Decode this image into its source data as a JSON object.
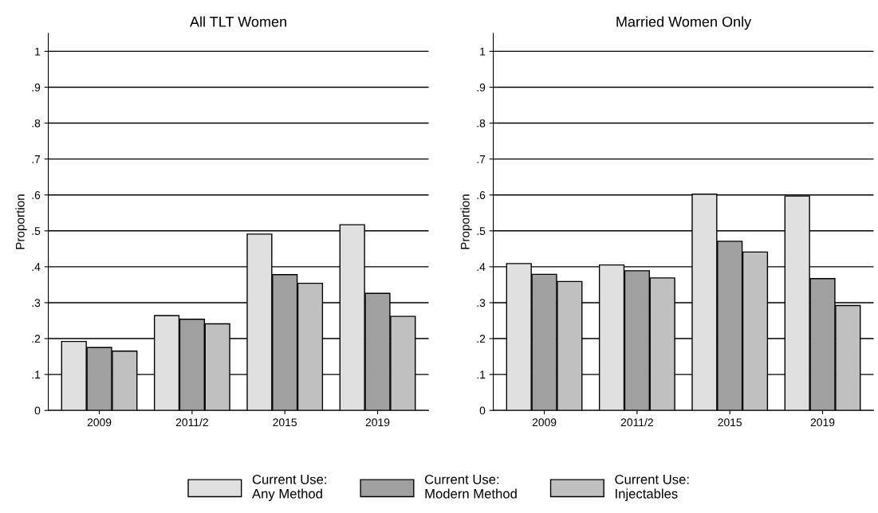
{
  "chart_data": [
    {
      "type": "bar",
      "title": "All TLT Women",
      "ylabel": "Proportion",
      "categories": [
        "2009",
        "2011/2",
        "2015",
        "2019"
      ],
      "series": [
        {
          "name": "Current Use:\nAny Method",
          "color": "#e0e0e0",
          "values": [
            0.192,
            0.264,
            0.491,
            0.517
          ]
        },
        {
          "name": "Current Use:\nModern Method",
          "color": "#a0a0a0",
          "values": [
            0.175,
            0.254,
            0.378,
            0.326
          ]
        },
        {
          "name": "Current Use:\nInjectables",
          "color": "#c0c0c0",
          "values": [
            0.165,
            0.241,
            0.354,
            0.262
          ]
        }
      ],
      "ylim": [
        0,
        1.05
      ],
      "yticks": [
        0,
        {
          "value": 0.1,
          "label": ".1"
        },
        {
          "value": 0.2,
          "label": ".2"
        },
        {
          "value": 0.3,
          "label": ".3"
        },
        {
          "value": 0.4,
          "label": ".4"
        },
        {
          "value": 0.5,
          "label": ".5"
        },
        {
          "value": 0.6,
          "label": ".6"
        },
        {
          "value": 0.7,
          "label": ".7"
        },
        {
          "value": 0.8,
          "label": ".8"
        },
        {
          "value": 0.9,
          "label": ".9"
        },
        1
      ],
      "grid": "y",
      "legend": "bottom"
    },
    {
      "type": "bar",
      "title": "Married Women Only",
      "ylabel": "Proportion",
      "categories": [
        "2009",
        "2011/2",
        "2015",
        "2019"
      ],
      "series": [
        {
          "color": "#e0e0e0",
          "values": [
            0.409,
            0.405,
            0.602,
            0.597
          ]
        },
        {
          "color": "#a0a0a0",
          "values": [
            0.379,
            0.389,
            0.471,
            0.367
          ]
        },
        {
          "color": "#c0c0c0",
          "values": [
            0.359,
            0.369,
            0.441,
            0.292
          ]
        }
      ],
      "ylim": [
        0,
        1.05
      ],
      "yticks": [
        0,
        {
          "value": 0.1,
          "label": ".1"
        },
        {
          "value": 0.2,
          "label": ".2"
        },
        {
          "value": 0.3,
          "label": ".3"
        },
        {
          "value": 0.4,
          "label": ".4"
        },
        {
          "value": 0.5,
          "label": ".5"
        },
        {
          "value": 0.6,
          "label": ".6"
        },
        {
          "value": 0.7,
          "label": ".7"
        },
        {
          "value": 0.8,
          "label": ".8"
        },
        {
          "value": 0.9,
          "label": ".9"
        },
        1
      ],
      "grid": "y"
    }
  ]
}
